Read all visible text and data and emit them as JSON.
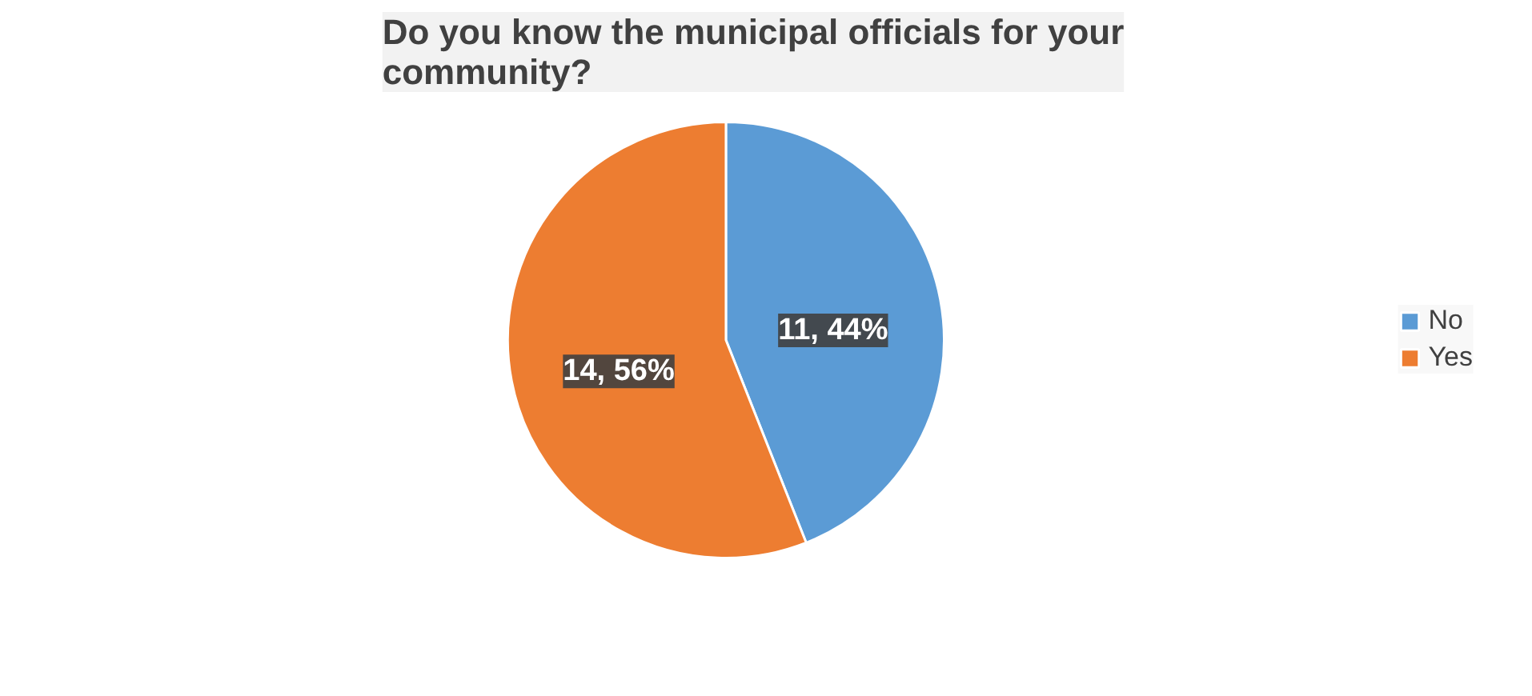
{
  "chart_data": {
    "type": "pie",
    "title": "Do you know the municipal officials for your community?",
    "categories": [
      "No",
      "Yes"
    ],
    "values": [
      11,
      14
    ],
    "colors": [
      "#5b9bd5",
      "#ed7d31"
    ],
    "value_labels": [
      "11, 44%",
      "14, 56%"
    ],
    "legend": "right"
  }
}
